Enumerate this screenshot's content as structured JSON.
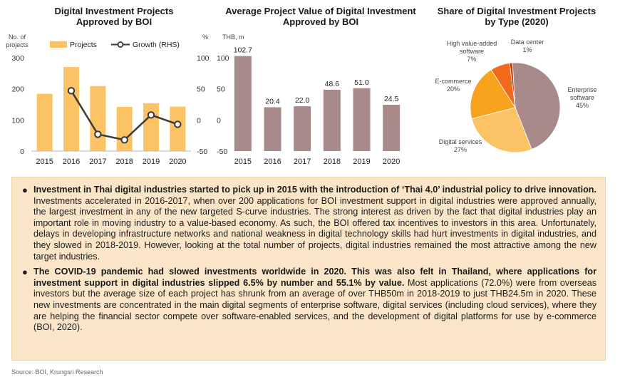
{
  "charts": {
    "projects": {
      "title_line1": "Digital Investment Projects",
      "title_line2": "Approved by BOI",
      "left_unit_line1": "No. of",
      "left_unit_line2": "projects",
      "right_unit": "%",
      "legend_projects": "Projects",
      "legend_growth": "Growth (RHS)"
    },
    "value": {
      "title_line1": "Average Project Value of Digital Investment",
      "title_line2": "Approved by BOI",
      "unit": "THB, m"
    },
    "share": {
      "title_line1": "Share of Digital Investment Projects",
      "title_line2": "by Type (2020)"
    }
  },
  "chart_data": [
    {
      "type": "bar",
      "title": "Digital Investment Projects Approved by BOI",
      "categories": [
        "2015",
        "2016",
        "2017",
        "2018",
        "2019",
        "2020"
      ],
      "series": [
        {
          "name": "Projects",
          "values": [
            184,
            270,
            209,
            142,
            154,
            143
          ],
          "axis": "left",
          "color": "#fcc266"
        },
        {
          "name": "Growth (RHS)",
          "type": "line",
          "values": [
            null,
            47,
            -23,
            -32,
            8,
            -7
          ],
          "axis": "right",
          "color": "#3a3a3a"
        }
      ],
      "ylim_left": [
        0,
        300
      ],
      "yticks_left": [
        0,
        100,
        200,
        300
      ],
      "ylim_right": [
        -50,
        100
      ],
      "yticks_right": [
        -50,
        0,
        50,
        100
      ],
      "legend": "top"
    },
    {
      "type": "bar",
      "title": "Average Project Value of Digital Investment Approved by BOI",
      "categories": [
        "2015",
        "2016",
        "2017",
        "2018",
        "2019",
        "2020"
      ],
      "values": [
        102.7,
        20.4,
        22.0,
        48.6,
        51.0,
        24.5
      ],
      "labels": [
        "102.7",
        "20.4",
        "22.0",
        "48.6",
        "51.0",
        "24.5"
      ],
      "color": "#a88a8a",
      "ylim": [
        -50,
        100
      ],
      "yticks": [
        -50,
        0,
        50,
        100
      ],
      "bar_base": -50
    },
    {
      "type": "pie",
      "title": "Share of Digital Investment Projects by Type (2020)",
      "slices": [
        {
          "label": "Enterprise software",
          "value": 45,
          "pct": "45%",
          "color": "#a88a8a"
        },
        {
          "label": "Digital services",
          "value": 27,
          "pct": "27%",
          "color": "#fcc266"
        },
        {
          "label": "E-commerce",
          "value": 20,
          "pct": "20%",
          "color": "#f7a31e"
        },
        {
          "label": "High value-added software",
          "value": 7,
          "pct": "7%",
          "color": "#ef6a1a"
        },
        {
          "label": "Data center",
          "value": 1,
          "pct": "1%",
          "color": "#c43b12"
        }
      ]
    }
  ],
  "text_box": {
    "bullet1_bold": "Investment in Thai digital industries started to pick up in 2015 with the introduction of ‘Thai 4.0’ industrial policy to drive innovation.",
    "bullet1_rest": " Investments accelerated in 2016-2017, when over 200 applications for BOI investment support in digital industries were approved annually, the largest investment in any of the new targeted S-curve industries. The strong interest as driven by the fact that digital industries play an important role in moving industry to a value-based economy. As such, the BOI offered tax incentives to investors in this area. Unfortunately, delays in developing infrastructure networks and national weakness in digital technology skills had hurt investments in digital industries, and they slowed in 2018-2019. However, looking at the total number of projects, digital industries remained the most attractive among the new target industries.",
    "bullet2_bold": "The COVID-19 pandemic had slowed investments worldwide in 2020. This was also felt in Thailand, where applications for investment support in digital industries slipped 6.5% by number and 55.1% by value.",
    "bullet2_rest": " Most applications (72.0%) were from overseas investors but the average size of each project has shrunk from an average of over THB50m in 2018-2019 to just THB24.5m in 2020. These new investments are concentrated in the main digital segments of enterprise software, digital services (including cloud services), where they are helping the financial sector compete over software-enabled services, and the development of digital platforms for use by e-commerce (BOI, 2020)."
  },
  "source": "Source: BOI, Krungsri Research"
}
